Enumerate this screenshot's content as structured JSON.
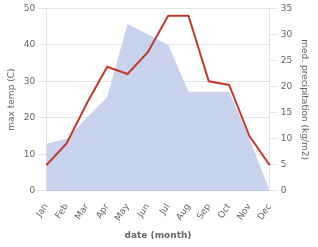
{
  "chart_data": {
    "type": "line",
    "categories": [
      "Jan",
      "Feb",
      "Mar",
      "Apr",
      "May",
      "Jun",
      "Jul",
      "Aug",
      "Sep",
      "Oct",
      "Nov",
      "Dec"
    ],
    "series": [
      {
        "type": "area",
        "color": "#b8c4e8",
        "axis": "y2",
        "values": [
          9,
          10,
          14,
          18,
          32,
          30,
          28,
          19,
          19,
          19,
          10,
          0
        ]
      },
      {
        "type": "line",
        "color": "#c0392b",
        "values": [
          7,
          13,
          24,
          34,
          32,
          38,
          48,
          48,
          30,
          29,
          15,
          7
        ]
      }
    ],
    "xlabel": "date (month)",
    "ylabel": "max temp (C)",
    "y2label": "med. precipitation (kg/m2)",
    "ylim": [
      0,
      50
    ],
    "yticks": [
      0,
      10,
      20,
      30,
      40,
      50
    ],
    "y2lim": [
      0,
      35
    ],
    "y2ticks": [
      0,
      5,
      10,
      15,
      20,
      25,
      30,
      35
    ],
    "grid": true
  }
}
